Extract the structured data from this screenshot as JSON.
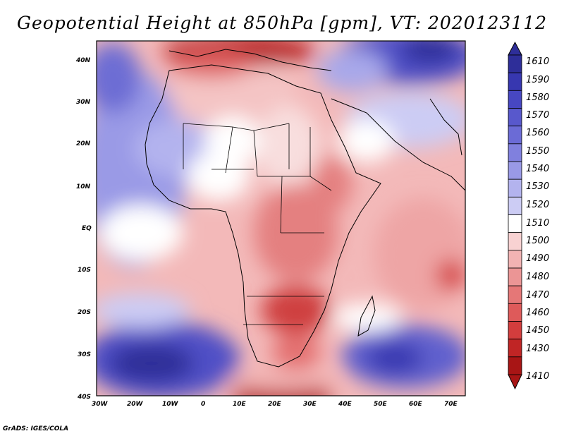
{
  "title": "Geopotential Height at 850hPa [gpm], VT: 2020123112",
  "credit": "GrADS: IGES/COLA",
  "map": {
    "lon_range": [
      -30,
      75
    ],
    "lat_range": [
      -40,
      45
    ],
    "lon_ticks": [
      "30W",
      "20W",
      "10W",
      "0",
      "10E",
      "20E",
      "30E",
      "40E",
      "50E",
      "60E",
      "70E"
    ],
    "lat_ticks": [
      "40N",
      "30N",
      "20N",
      "10N",
      "EQ",
      "10S",
      "20S",
      "30S",
      "40S"
    ]
  },
  "colorbar": {
    "levels": [
      "1610",
      "1590",
      "1580",
      "1570",
      "1560",
      "1550",
      "1540",
      "1530",
      "1520",
      "1510",
      "1500",
      "1490",
      "1480",
      "1470",
      "1460",
      "1450",
      "1430",
      "1410"
    ],
    "colors": [
      "#2e2e99",
      "#3737b0",
      "#4747c2",
      "#5858cc",
      "#6b6bd6",
      "#8080de",
      "#9999e6",
      "#b3b3ee",
      "#ccccf4",
      "#ffffff",
      "#f8d2d2",
      "#f2b3b3",
      "#eb9595",
      "#e57777",
      "#de5a5a",
      "#d33d3d",
      "#c02525",
      "#a81515"
    ]
  },
  "legend_items": [
    {
      "label": "1610"
    },
    {
      "label": "1590"
    },
    {
      "label": "1580"
    },
    {
      "label": "1570"
    },
    {
      "label": "1560"
    },
    {
      "label": "1550"
    },
    {
      "label": "1540"
    },
    {
      "label": "1530"
    },
    {
      "label": "1520"
    },
    {
      "label": "1510"
    },
    {
      "label": "1500"
    },
    {
      "label": "1490"
    },
    {
      "label": "1480"
    },
    {
      "label": "1470"
    },
    {
      "label": "1460"
    },
    {
      "label": "1450"
    },
    {
      "label": "1430"
    },
    {
      "label": "1410"
    }
  ]
}
